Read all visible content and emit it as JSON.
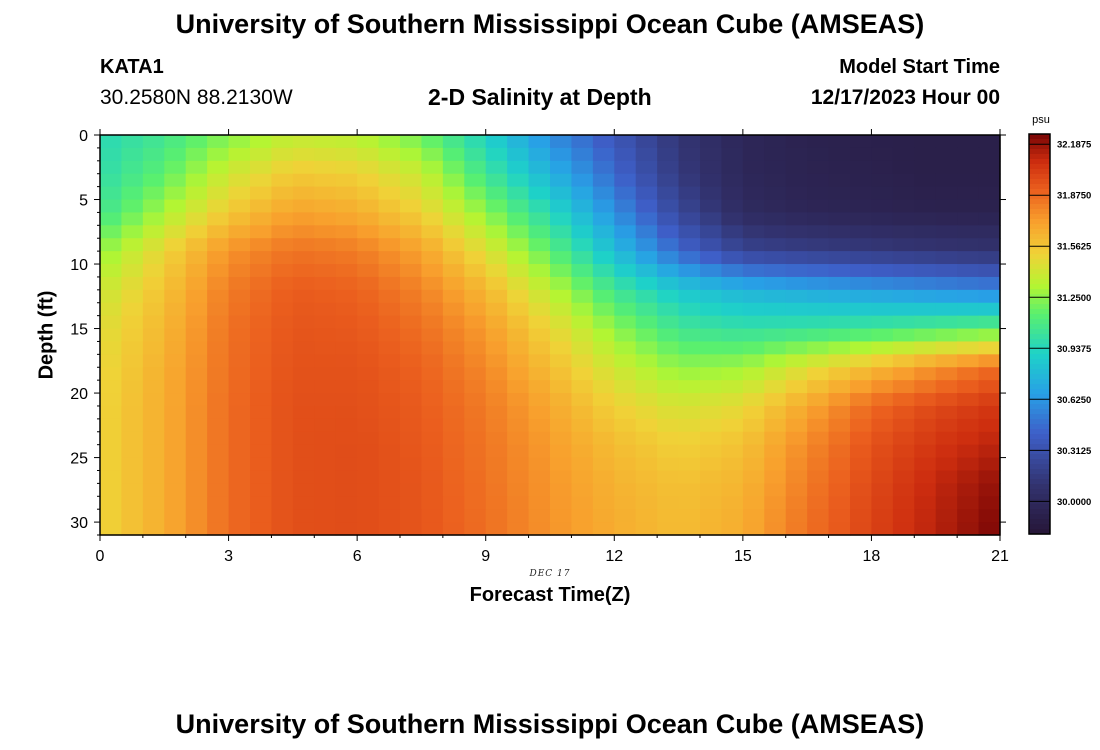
{
  "header": {
    "title": "University of Southern Mississippi Ocean Cube (AMSEAS)",
    "station_name": "KATA1",
    "coordinates": "30.2580N  88.2130W",
    "chart_title": "2-D Salinity at Depth",
    "model_start_label": "Model Start Time",
    "model_start_value": "12/17/2023 Hour 00"
  },
  "footer": {
    "title": "University of Southern Mississippi Ocean Cube (AMSEAS)"
  },
  "chart_data": {
    "type": "heatmap",
    "title": "2-D Salinity at Depth",
    "xlabel": "Forecast Time(Z)",
    "ylabel": "Depth (ft)",
    "date_label": "DEC 17",
    "x_ticks": [
      0,
      3,
      6,
      9,
      12,
      15,
      18,
      21
    ],
    "y_ticks": [
      0,
      5,
      10,
      15,
      20,
      25,
      30
    ],
    "xlim": [
      0,
      21
    ],
    "ylim": [
      0,
      31
    ],
    "colorbar": {
      "unit": "psu",
      "range": [
        29.8,
        32.25
      ],
      "ticks": [
        "32.1875",
        "31.8750",
        "31.5625",
        "31.2500",
        "30.9375",
        "30.6250",
        "30.3125",
        "30.0000"
      ]
    },
    "grid": {
      "x": [
        0,
        1.5,
        3,
        4.5,
        6,
        7.5,
        9,
        10.5,
        12,
        13.5,
        15,
        16.5,
        18,
        19.5,
        21
      ],
      "depth": [
        0,
        3,
        6,
        9,
        12,
        15,
        18,
        21,
        24,
        27,
        30,
        31
      ],
      "salinity": [
        [
          30.95,
          31.05,
          31.22,
          31.36,
          31.33,
          31.18,
          30.9,
          30.58,
          30.35,
          30.12,
          29.98,
          29.93,
          29.91,
          29.9,
          29.9
        ],
        [
          30.98,
          31.15,
          31.4,
          31.55,
          31.52,
          31.38,
          31.05,
          30.75,
          30.45,
          30.15,
          29.98,
          29.94,
          29.92,
          29.9,
          29.9
        ],
        [
          31.05,
          31.3,
          31.55,
          31.7,
          31.66,
          31.52,
          31.25,
          30.95,
          30.6,
          30.25,
          30.02,
          29.97,
          29.95,
          29.93,
          29.93
        ],
        [
          31.25,
          31.5,
          31.75,
          31.85,
          31.82,
          31.7,
          31.45,
          31.15,
          30.8,
          30.45,
          30.22,
          30.18,
          30.15,
          30.12,
          30.1
        ],
        [
          31.38,
          31.58,
          31.82,
          31.92,
          31.9,
          31.8,
          31.62,
          31.35,
          31.05,
          30.85,
          30.75,
          30.7,
          30.65,
          30.6,
          30.55
        ],
        [
          31.45,
          31.62,
          31.85,
          31.94,
          31.93,
          31.86,
          31.72,
          31.5,
          31.25,
          31.05,
          31.0,
          31.02,
          31.05,
          31.1,
          31.15
        ],
        [
          31.48,
          31.65,
          31.86,
          31.95,
          31.95,
          31.9,
          31.78,
          31.6,
          31.4,
          31.25,
          31.28,
          31.45,
          31.6,
          31.75,
          31.88
        ],
        [
          31.5,
          31.66,
          31.87,
          31.96,
          31.96,
          31.92,
          31.82,
          31.68,
          31.52,
          31.42,
          31.48,
          31.68,
          31.88,
          31.98,
          32.05
        ],
        [
          31.5,
          31.66,
          31.87,
          31.96,
          31.97,
          31.93,
          31.84,
          31.72,
          31.6,
          31.52,
          31.58,
          31.78,
          31.95,
          32.05,
          32.12
        ],
        [
          31.5,
          31.66,
          31.87,
          31.96,
          31.97,
          31.94,
          31.85,
          31.74,
          31.64,
          31.58,
          31.63,
          31.82,
          31.98,
          32.1,
          32.2
        ],
        [
          31.5,
          31.66,
          31.87,
          31.96,
          31.97,
          31.94,
          31.86,
          31.75,
          31.66,
          31.6,
          31.66,
          31.85,
          32.0,
          32.12,
          32.24
        ],
        [
          31.5,
          31.66,
          31.87,
          31.96,
          31.97,
          31.94,
          31.86,
          31.75,
          31.66,
          31.6,
          31.66,
          31.85,
          32.0,
          32.12,
          32.25
        ]
      ]
    }
  }
}
